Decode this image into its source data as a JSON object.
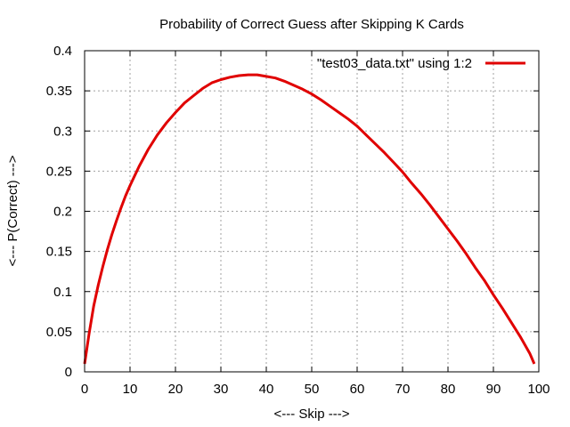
{
  "chart_data": {
    "type": "line",
    "title": "Probability of Correct Guess after Skipping K Cards",
    "xlabel": "<--- Skip --->",
    "ylabel": "<--- P(Correct) --->",
    "xlim": [
      0,
      100
    ],
    "ylim": [
      0,
      0.4
    ],
    "xticks": [
      0,
      10,
      20,
      30,
      40,
      50,
      60,
      70,
      80,
      90,
      100
    ],
    "yticks": [
      0,
      0.05,
      0.1,
      0.15,
      0.2,
      0.25,
      0.3,
      0.35,
      0.4
    ],
    "xtick_labels": [
      "0",
      "10",
      "20",
      "30",
      "40",
      "50",
      "60",
      "70",
      "80",
      "90",
      "100"
    ],
    "ytick_labels": [
      "0",
      "0.05",
      "0.1",
      "0.15",
      "0.2",
      "0.25",
      "0.3",
      "0.35",
      "0.4"
    ],
    "grid": true,
    "legend": {
      "position": "top-right"
    },
    "series": [
      {
        "name": "\"test03_data.txt\" using 1:2",
        "color": "#e00000",
        "x": [
          0,
          1,
          2,
          3,
          4,
          5,
          6,
          7,
          8,
          9,
          10,
          12,
          14,
          16,
          18,
          20,
          22,
          24,
          26,
          28,
          30,
          32,
          34,
          36,
          38,
          40,
          42,
          44,
          46,
          48,
          50,
          52,
          54,
          56,
          58,
          60,
          62,
          64,
          66,
          68,
          70,
          72,
          74,
          76,
          78,
          80,
          82,
          84,
          86,
          88,
          90,
          92,
          94,
          96,
          98,
          99
        ],
        "y": [
          0.01,
          0.048,
          0.082,
          0.108,
          0.131,
          0.152,
          0.171,
          0.188,
          0.204,
          0.219,
          0.232,
          0.256,
          0.277,
          0.295,
          0.31,
          0.323,
          0.335,
          0.344,
          0.353,
          0.36,
          0.364,
          0.367,
          0.369,
          0.37,
          0.37,
          0.368,
          0.366,
          0.362,
          0.357,
          0.352,
          0.346,
          0.339,
          0.331,
          0.323,
          0.315,
          0.306,
          0.295,
          0.284,
          0.273,
          0.261,
          0.249,
          0.235,
          0.222,
          0.208,
          0.193,
          0.178,
          0.163,
          0.147,
          0.13,
          0.114,
          0.096,
          0.079,
          0.061,
          0.043,
          0.023,
          0.01
        ]
      }
    ]
  }
}
